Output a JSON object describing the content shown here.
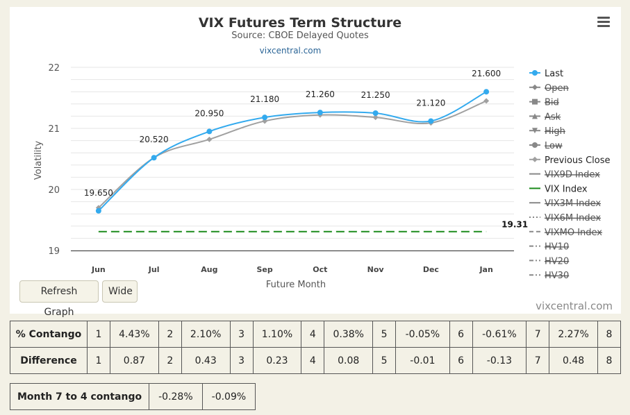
{
  "chart_data": {
    "type": "line",
    "title": "VIX Futures Term Structure",
    "subtitle": "Source: CBOE Delayed Quotes",
    "link_text": "vixcentral.com",
    "credit": "vixcentral.com",
    "xlabel": "Future Month",
    "ylabel": "Volatility",
    "categories": [
      "Jun",
      "Jul",
      "Aug",
      "Sep",
      "Oct",
      "Nov",
      "Dec",
      "Jan"
    ],
    "yticks": [
      "19",
      "20",
      "21",
      "22"
    ],
    "ylim": [
      19,
      22
    ],
    "grid": true,
    "series": [
      {
        "name": "Last",
        "values": [
          19.65,
          20.52,
          20.95,
          21.18,
          21.26,
          21.25,
          21.12,
          21.6
        ],
        "labels": [
          "19.650",
          "20.520",
          "20.950",
          "21.180",
          "21.260",
          "21.250",
          "21.120",
          "21.600"
        ],
        "color": "#33aaee"
      },
      {
        "name": "Previous Close",
        "values": [
          19.7,
          20.52,
          20.82,
          21.12,
          21.22,
          21.18,
          21.09,
          21.45
        ],
        "color": "#a0a0a0"
      },
      {
        "name": "VIX Index",
        "value": 19.31,
        "label": "19.31",
        "color": "#1a8a1a"
      }
    ],
    "legend": {
      "placement": "right",
      "items": [
        {
          "name": "Last",
          "marker": "circle",
          "line": "solid",
          "color": "#33aaee",
          "hidden": false
        },
        {
          "name": "Open",
          "marker": "diamond",
          "line": "solid",
          "color": "#555555",
          "hidden": true
        },
        {
          "name": "Bid",
          "marker": "square",
          "line": "solid",
          "color": "#555555",
          "hidden": true
        },
        {
          "name": "Ask",
          "marker": "triangle-up",
          "line": "solid",
          "color": "#555555",
          "hidden": true
        },
        {
          "name": "High",
          "marker": "triangle-down",
          "line": "solid",
          "color": "#555555",
          "hidden": true
        },
        {
          "name": "Low",
          "marker": "circle",
          "line": "solid",
          "color": "#555555",
          "hidden": true
        },
        {
          "name": "Previous Close",
          "marker": "diamond",
          "line": "solid",
          "color": "#a0a0a0",
          "hidden": false
        },
        {
          "name": "VIX9D Index",
          "marker": "none",
          "line": "solid",
          "color": "#555555",
          "hidden": true
        },
        {
          "name": "VIX Index",
          "marker": "none",
          "line": "solid",
          "color": "#1a8a1a",
          "hidden": false
        },
        {
          "name": "VIX3M Index",
          "marker": "none",
          "line": "solid",
          "color": "#555555",
          "hidden": true
        },
        {
          "name": "VIX6M Index",
          "marker": "none",
          "line": "dotted",
          "color": "#555555",
          "hidden": true
        },
        {
          "name": "VIXMO Index",
          "marker": "none",
          "line": "dashed",
          "color": "#555555",
          "hidden": true
        },
        {
          "name": "HV10",
          "marker": "none",
          "line": "dashdot",
          "color": "#555555",
          "hidden": true
        },
        {
          "name": "HV20",
          "marker": "none",
          "line": "dashdot",
          "color": "#555555",
          "hidden": true
        },
        {
          "name": "HV30",
          "marker": "none",
          "line": "dashdot",
          "color": "#555555",
          "hidden": true
        }
      ]
    }
  },
  "buttons": {
    "refresh": "Refresh Graph",
    "wide": "Wide"
  },
  "contango_table": {
    "rows": [
      {
        "label": "% Contango",
        "cells": [
          [
            "1",
            "4.43%"
          ],
          [
            "2",
            "2.10%"
          ],
          [
            "3",
            "1.10%"
          ],
          [
            "4",
            "0.38%"
          ],
          [
            "5",
            "-0.05%"
          ],
          [
            "6",
            "-0.61%"
          ],
          [
            "7",
            "2.27%"
          ]
        ],
        "last": "8"
      },
      {
        "label": "Difference",
        "cells": [
          [
            "1",
            "0.87"
          ],
          [
            "2",
            "0.43"
          ],
          [
            "3",
            "0.23"
          ],
          [
            "4",
            "0.08"
          ],
          [
            "5",
            "-0.01"
          ],
          [
            "6",
            "-0.13"
          ],
          [
            "7",
            "0.48"
          ]
        ],
        "last": "8"
      }
    ]
  },
  "month74": {
    "label": "Month 7 to 4 contango",
    "values": [
      "-0.28%",
      "-0.09%"
    ]
  }
}
